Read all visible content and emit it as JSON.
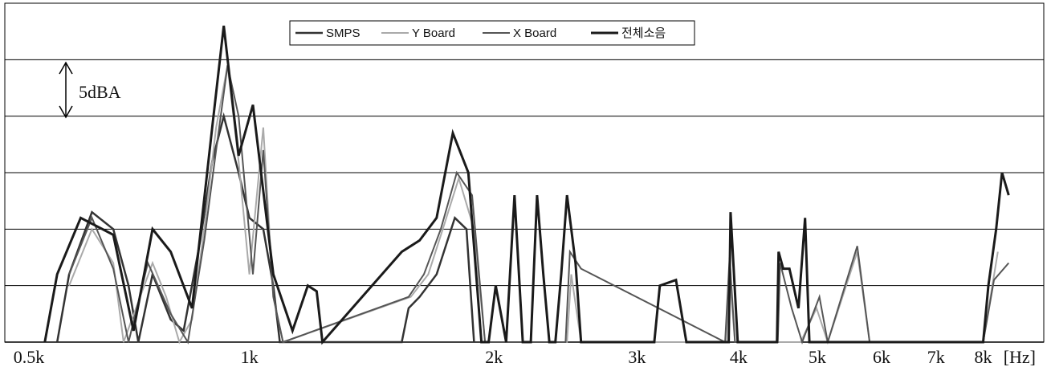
{
  "chart_data": {
    "type": "line",
    "x_scale": "log",
    "xlim": [
      500,
      9500
    ],
    "ylim": [
      0,
      30
    ],
    "grid": "horizontal",
    "legend_position": "top-center",
    "x_tick_labels": [
      {
        "value": 500,
        "label": "0.5k"
      },
      {
        "value": 1000,
        "label": "1k"
      },
      {
        "value": 2000,
        "label": "2k"
      },
      {
        "value": 3000,
        "label": "3k"
      },
      {
        "value": 4000,
        "label": "4k"
      },
      {
        "value": 5000,
        "label": "5k"
      },
      {
        "value": 6000,
        "label": "6k"
      },
      {
        "value": 7000,
        "label": "7k"
      },
      {
        "value": 8000,
        "label": "8k"
      }
    ],
    "x_unit_label": "[Hz]",
    "y_grid_values": [
      5,
      10,
      15,
      20,
      25,
      30
    ],
    "scale_annotation": "5dBA",
    "series": [
      {
        "name": "SMPS",
        "color": "#333333",
        "width": 2.5,
        "points": [
          [
            580,
            0
          ],
          [
            600,
            6
          ],
          [
            640,
            11.5
          ],
          [
            680,
            10
          ],
          [
            710,
            5
          ],
          [
            730,
            0
          ],
          [
            760,
            6
          ],
          [
            800,
            2
          ],
          [
            830,
            1
          ],
          [
            870,
            9
          ],
          [
            900,
            16
          ],
          [
            930,
            20
          ],
          [
            970,
            15
          ],
          [
            1000,
            11
          ],
          [
            1040,
            10
          ],
          [
            1070,
            5
          ],
          [
            1090,
            0
          ],
          [
            1540,
            0
          ],
          [
            1570,
            3
          ],
          [
            1620,
            4
          ],
          [
            1700,
            6
          ],
          [
            1790,
            11
          ],
          [
            1850,
            10
          ],
          [
            1890,
            0
          ]
        ]
      },
      {
        "name": "Y Board",
        "color": "#aaaaaa",
        "width": 2,
        "points": [
          [
            600,
            5
          ],
          [
            640,
            10
          ],
          [
            680,
            7
          ],
          [
            700,
            0
          ],
          [
            760,
            7
          ],
          [
            790,
            4
          ],
          [
            820,
            0
          ],
          [
            850,
            2
          ],
          [
            880,
            10
          ],
          [
            910,
            19
          ],
          [
            940,
            24.5
          ],
          [
            970,
            16
          ],
          [
            1000,
            6
          ],
          [
            1040,
            19
          ],
          [
            1070,
            4
          ],
          [
            1100,
            0
          ],
          [
            1580,
            4
          ],
          [
            1660,
            6
          ],
          [
            1730,
            10
          ],
          [
            1810,
            14.5
          ],
          [
            1890,
            10
          ],
          [
            1950,
            0
          ],
          [
            2460,
            0
          ],
          [
            2490,
            6
          ],
          [
            2560,
            0
          ],
          [
            3860,
            0
          ],
          [
            3900,
            6
          ],
          [
            3960,
            0
          ],
          [
            4770,
            0
          ],
          [
            4990,
            3
          ],
          [
            5150,
            0
          ],
          [
            5600,
            8
          ],
          [
            5800,
            0
          ],
          [
            8000,
            0
          ],
          [
            8340,
            8
          ]
        ]
      },
      {
        "name": "X Board",
        "color": "#555555",
        "width": 2,
        "points": [
          [
            600,
            6
          ],
          [
            640,
            11
          ],
          [
            680,
            6.5
          ],
          [
            710,
            0
          ],
          [
            750,
            7
          ],
          [
            800,
            2.5
          ],
          [
            840,
            0
          ],
          [
            880,
            9
          ],
          [
            910,
            17
          ],
          [
            940,
            24.5
          ],
          [
            970,
            20
          ],
          [
            1010,
            6
          ],
          [
            1040,
            17
          ],
          [
            1070,
            4
          ],
          [
            1100,
            0
          ],
          [
            1570,
            4
          ],
          [
            1640,
            6
          ],
          [
            1720,
            10
          ],
          [
            1800,
            15
          ],
          [
            1880,
            13
          ],
          [
            1950,
            0
          ],
          [
            2450,
            0
          ],
          [
            2480,
            8
          ],
          [
            2560,
            6.5
          ],
          [
            3850,
            0
          ],
          [
            3900,
            7.5
          ],
          [
            3960,
            0
          ],
          [
            4470,
            0
          ],
          [
            4500,
            7
          ],
          [
            4650,
            3
          ],
          [
            4790,
            0
          ],
          [
            5030,
            4
          ],
          [
            5150,
            0
          ],
          [
            5600,
            8.5
          ],
          [
            5800,
            0
          ],
          [
            8000,
            0
          ],
          [
            8250,
            5.5
          ],
          [
            8600,
            7
          ]
        ]
      },
      {
        "name": "전체소음",
        "color": "#1a1a1a",
        "width": 3,
        "points": [
          [
            560,
            0
          ],
          [
            580,
            6
          ],
          [
            620,
            11
          ],
          [
            680,
            9.5
          ],
          [
            720,
            1
          ],
          [
            760,
            10
          ],
          [
            800,
            8
          ],
          [
            850,
            3
          ],
          [
            900,
            19
          ],
          [
            930,
            28
          ],
          [
            970,
            16.5
          ],
          [
            1010,
            21
          ],
          [
            1070,
            6
          ],
          [
            1130,
            1
          ],
          [
            1180,
            5
          ],
          [
            1210,
            4.5
          ],
          [
            1230,
            0
          ],
          [
            1540,
            8
          ],
          [
            1620,
            9
          ],
          [
            1700,
            11
          ],
          [
            1780,
            18.5
          ],
          [
            1860,
            15
          ],
          [
            1930,
            0
          ],
          [
            1970,
            0
          ],
          [
            2010,
            5
          ],
          [
            2070,
            0
          ],
          [
            2120,
            13
          ],
          [
            2170,
            0
          ],
          [
            2220,
            0
          ],
          [
            2260,
            13
          ],
          [
            2300,
            6
          ],
          [
            2340,
            0
          ],
          [
            2380,
            0
          ],
          [
            2420,
            6
          ],
          [
            2460,
            13
          ],
          [
            2520,
            7
          ],
          [
            2560,
            0
          ],
          [
            2600,
            0
          ],
          [
            2670,
            0
          ],
          [
            2760,
            0
          ],
          [
            2860,
            0
          ],
          [
            2960,
            0
          ],
          [
            3040,
            0
          ],
          [
            3100,
            0
          ],
          [
            3150,
            0
          ],
          [
            3200,
            5
          ],
          [
            3350,
            5.5
          ],
          [
            3450,
            0
          ],
          [
            3520,
            0
          ],
          [
            3590,
            0
          ],
          [
            3700,
            0
          ],
          [
            3770,
            0
          ],
          [
            3830,
            0
          ],
          [
            3890,
            0
          ],
          [
            3910,
            11.5
          ],
          [
            3990,
            0
          ],
          [
            4050,
            0
          ],
          [
            4130,
            0
          ],
          [
            4250,
            0
          ],
          [
            4380,
            0
          ],
          [
            4460,
            0
          ],
          [
            4480,
            8
          ],
          [
            4540,
            6.5
          ],
          [
            4620,
            6.5
          ],
          [
            4740,
            3
          ],
          [
            4830,
            11
          ],
          [
            4890,
            0
          ],
          [
            4990,
            0
          ],
          [
            5060,
            0
          ],
          [
            5140,
            0
          ],
          [
            5220,
            0
          ],
          [
            5280,
            0
          ],
          [
            5370,
            0
          ],
          [
            5460,
            0
          ],
          [
            5540,
            0
          ],
          [
            5600,
            0
          ],
          [
            5700,
            0
          ],
          [
            5800,
            0
          ],
          [
            5900,
            0
          ],
          [
            6000,
            0
          ],
          [
            6200,
            0
          ],
          [
            6400,
            0
          ],
          [
            6600,
            0
          ],
          [
            6800,
            0
          ],
          [
            7000,
            0
          ],
          [
            7200,
            0
          ],
          [
            7400,
            0
          ],
          [
            7600,
            0
          ],
          [
            7800,
            0
          ],
          [
            8000,
            0
          ],
          [
            8120,
            5
          ],
          [
            8300,
            10
          ],
          [
            8440,
            15
          ],
          [
            8600,
            13
          ]
        ]
      }
    ]
  }
}
